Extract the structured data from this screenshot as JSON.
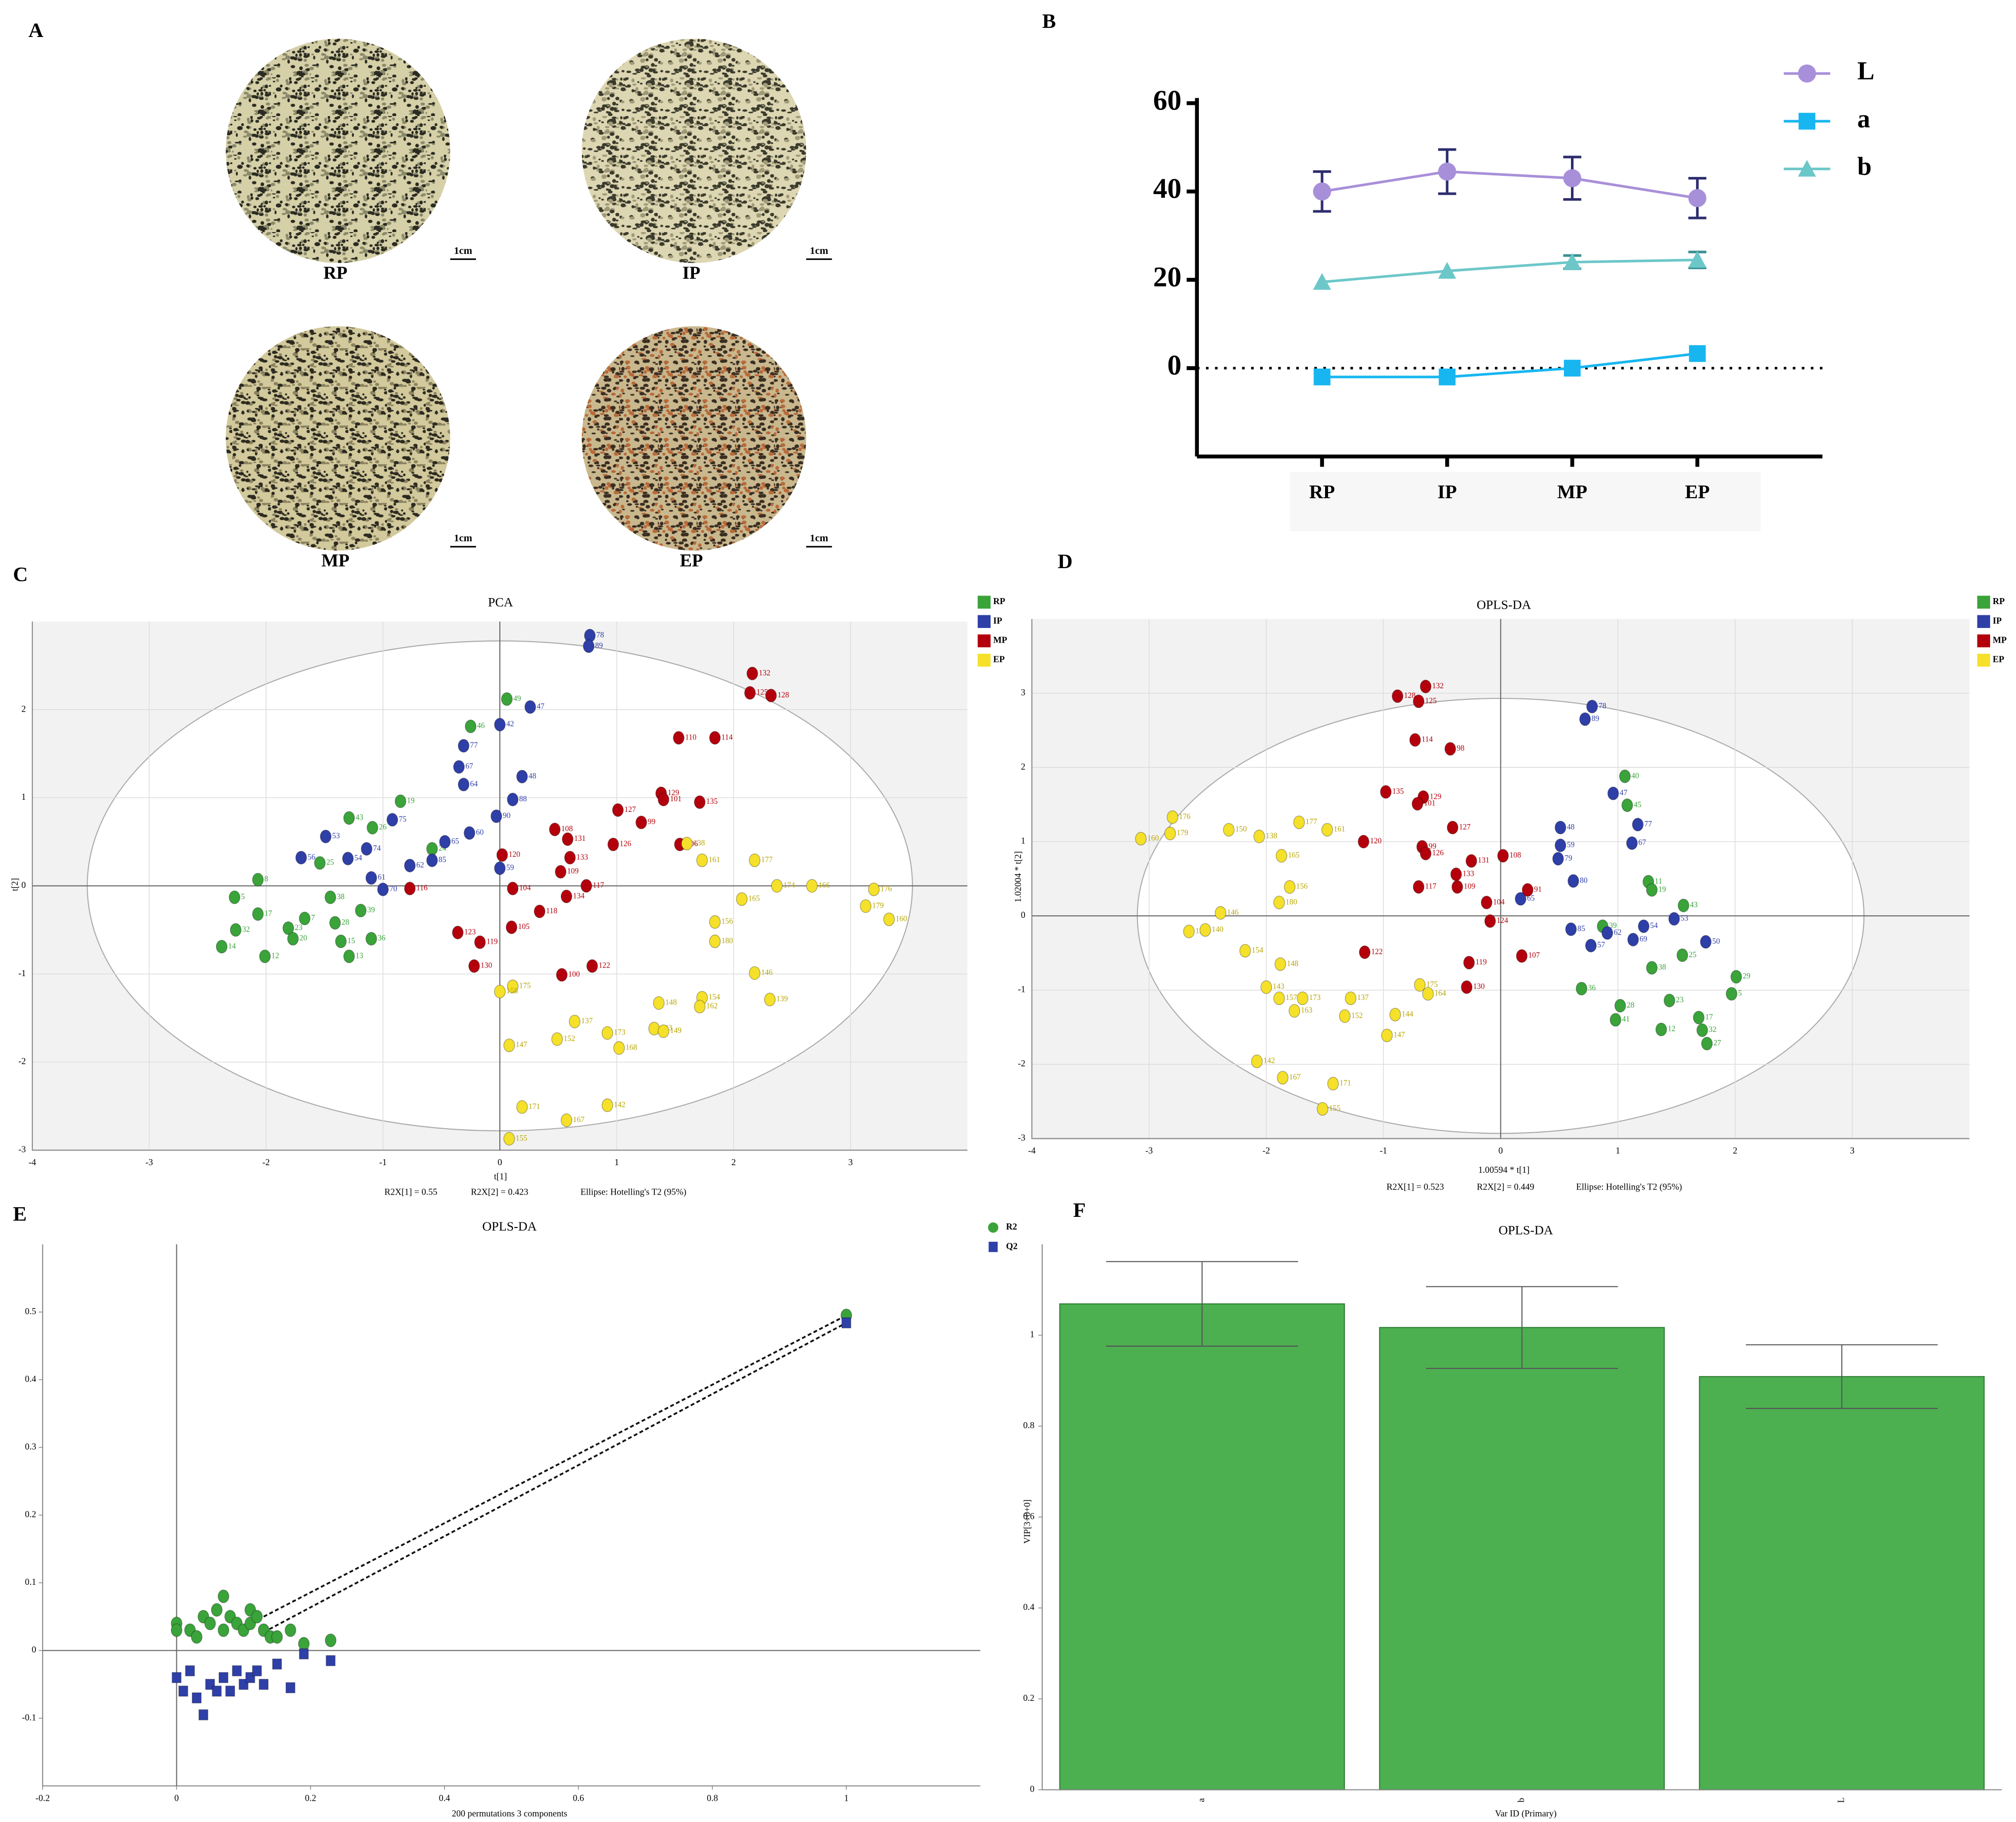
{
  "panel_labels": [
    "A",
    "B",
    "C",
    "D",
    "E",
    "F"
  ],
  "photos": [
    {
      "label": "RP",
      "scale": "1cm"
    },
    {
      "label": "IP",
      "scale": "1cm"
    },
    {
      "label": "MP",
      "scale": "1cm"
    },
    {
      "label": "EP",
      "scale": "1cm"
    }
  ],
  "chart_data": [
    {
      "type": "line",
      "categories": [
        "RP",
        "IP",
        "MP",
        "EP"
      ],
      "ylim": [
        -20,
        60
      ],
      "yticks": [
        0,
        20,
        40,
        60
      ],
      "reference_line": 0,
      "legend": "upper right",
      "series": [
        {
          "name": "L",
          "color": "#a88fd9",
          "error_color": "#2d2d6e",
          "marker": "circle",
          "values": [
            40,
            44.5,
            43,
            38.5
          ],
          "errors": [
            4.5,
            5,
            4.8,
            4.5
          ]
        },
        {
          "name": "a",
          "color": "#17b6f0",
          "marker": "square",
          "values": [
            -2,
            -2,
            0,
            3.3
          ],
          "errors": [
            null,
            null,
            null,
            null
          ]
        },
        {
          "name": "b",
          "color": "#6cc7c9",
          "error_color": "#3a8f91",
          "marker": "triangle",
          "values": [
            19.5,
            22,
            24,
            24.5
          ],
          "errors": [
            null,
            null,
            1.5,
            1.8
          ]
        }
      ]
    },
    {
      "type": "scatter",
      "title": "PCA",
      "x_label": "t[1]",
      "y_label": "t[2]",
      "xlim": [
        -4,
        4
      ],
      "ylim": [
        -3,
        3
      ],
      "xticks": [
        -4,
        -3,
        -2,
        -1,
        0,
        1,
        2,
        3
      ],
      "yticks": [
        -3,
        -2,
        -1,
        0,
        1,
        2
      ],
      "grid": true,
      "zero_lines": true,
      "ellipse": [
        3.53,
        2.78
      ],
      "legend": "outside upper right",
      "notes": [
        "R2X[1] = 0.55",
        "R2X[2] = 0.423",
        "Ellipse: Hotelling's T2 (95%)"
      ],
      "series": [
        {
          "name": "RP",
          "color": "#3aa33a",
          "x": [
            -2.27,
            -2.07,
            -2.07,
            -2.01,
            -2.26,
            -2.38,
            -1.81,
            -1.77,
            -1.67,
            -1.45,
            -1.41,
            -1.36,
            -1.29,
            -1.1,
            -1.19,
            -1.29,
            -1.09,
            -0.85,
            -0.25,
            0.06,
            -1.54,
            -0.58
          ],
          "values": [
            -0.13,
            0.07,
            -0.32,
            -0.8,
            -0.5,
            -0.69,
            -0.48,
            -0.6,
            -0.37,
            -0.13,
            -0.42,
            -0.63,
            -0.8,
            -0.6,
            -0.28,
            0.77,
            0.66,
            0.96,
            1.81,
            2.12,
            0.26,
            0.42
          ],
          "point_labels": [
            5,
            8,
            17,
            12,
            32,
            14,
            23,
            20,
            7,
            38,
            28,
            15,
            13,
            36,
            39,
            43,
            26,
            19,
            46,
            49,
            25,
            24
          ]
        },
        {
          "name": "IP",
          "color": "#2f3fa8",
          "x": [
            0.77,
            0.76,
            0.26,
            0.0,
            -0.31,
            -0.35,
            -0.31,
            0.19,
            0.11,
            -0.92,
            -1.49,
            -1.7,
            -1.14,
            -0.47,
            -0.26,
            -1.1,
            -1.0,
            -0.77,
            -0.58,
            0.0,
            -1.3,
            -0.03
          ],
          "values": [
            2.84,
            2.72,
            2.03,
            1.83,
            1.59,
            1.35,
            1.15,
            1.24,
            0.98,
            0.75,
            0.56,
            0.32,
            0.42,
            0.5,
            0.6,
            0.09,
            -0.04,
            0.23,
            0.29,
            0.2,
            0.31,
            0.79
          ],
          "point_labels": [
            78,
            89,
            47,
            42,
            77,
            67,
            64,
            48,
            88,
            75,
            53,
            56,
            74,
            65,
            60,
            61,
            70,
            62,
            85,
            59,
            54,
            90
          ]
        },
        {
          "name": "MP",
          "color": "#b3000c",
          "x": [
            2.16,
            2.14,
            2.32,
            1.53,
            1.84,
            1.38,
            1.4,
            1.71,
            1.01,
            1.21,
            0.47,
            0.58,
            0.6,
            0.97,
            1.54,
            0.02,
            0.52,
            0.11,
            0.74,
            0.57,
            0.34,
            0.1,
            -0.77,
            -0.17,
            -0.22,
            0.79,
            0.53,
            -0.36
          ],
          "values": [
            2.41,
            2.19,
            2.16,
            1.68,
            1.68,
            1.05,
            0.98,
            0.95,
            0.86,
            0.72,
            0.64,
            0.53,
            0.32,
            0.47,
            0.47,
            0.35,
            0.16,
            -0.03,
            0.0,
            -0.12,
            -0.29,
            -0.47,
            -0.03,
            -0.64,
            -0.91,
            -0.91,
            -1.01,
            -0.53
          ],
          "point_labels": [
            132,
            125,
            128,
            110,
            114,
            129,
            101,
            135,
            127,
            99,
            108,
            131,
            133,
            126,
            106,
            120,
            109,
            104,
            117,
            134,
            118,
            105,
            116,
            119,
            130,
            122,
            100,
            123
          ]
        },
        {
          "name": "EP",
          "color": "#f5e02a",
          "x": [
            3.2,
            3.13,
            3.33,
            2.67,
            2.37,
            2.18,
            2.07,
            1.73,
            1.6,
            1.84,
            1.84,
            2.18,
            2.31,
            1.73,
            1.71,
            1.36,
            1.32,
            1.4,
            0.92,
            1.02,
            0.64,
            0.49,
            0.08,
            0.11,
            0.0,
            0.19,
            0.92,
            0.57,
            0.08
          ],
          "values": [
            -0.04,
            -0.23,
            -0.38,
            0.0,
            0.0,
            0.29,
            -0.15,
            0.29,
            0.48,
            -0.41,
            -0.63,
            -0.99,
            -1.29,
            -1.27,
            -1.37,
            -1.33,
            -1.62,
            -1.65,
            -1.67,
            -1.84,
            -1.54,
            -1.74,
            -1.81,
            -1.14,
            -1.2,
            -2.51,
            -2.49,
            -2.66,
            -2.87
          ],
          "point_labels": [
            176,
            179,
            160,
            166,
            174,
            177,
            165,
            161,
            138,
            156,
            180,
            146,
            139,
            154,
            162,
            148,
            143,
            149,
            173,
            168,
            137,
            152,
            147,
            175,
            158,
            171,
            142,
            167,
            155
          ]
        }
      ]
    },
    {
      "type": "scatter",
      "title": "OPLS-DA",
      "x_label": "1.00594 * t[1]",
      "y_label": "1.02004 * t[2]",
      "xlim": [
        -4,
        4
      ],
      "ylim": [
        -3,
        4
      ],
      "xticks": [
        -4,
        -3,
        -2,
        -1,
        0,
        1,
        2,
        3
      ],
      "yticks": [
        -3,
        -2,
        -1,
        0,
        1,
        2,
        3
      ],
      "grid": true,
      "zero_lines": true,
      "ellipse": [
        3.1,
        2.93
      ],
      "legend": "outside upper right",
      "notes": [
        "R2X[1] = 0.523",
        "R2X[2] = 0.449",
        "Ellipse: Hotelling's T2 (95%)"
      ],
      "series": [
        {
          "name": "RP",
          "color": "#3aa33a",
          "x": [
            1.06,
            1.08,
            1.26,
            1.29,
            1.56,
            1.29,
            2.01,
            1.97,
            1.44,
            1.37,
            1.69,
            1.72,
            1.76,
            0.69,
            0.98,
            1.55,
            1.02,
            0.87
          ],
          "values": [
            1.88,
            1.49,
            0.46,
            0.35,
            0.14,
            -0.7,
            -0.82,
            -1.05,
            -1.14,
            -1.53,
            -1.37,
            -1.54,
            -1.72,
            -0.98,
            -1.4,
            -0.53,
            -1.21,
            -0.14
          ],
          "point_labels": [
            40,
            45,
            11,
            19,
            43,
            38,
            29,
            5,
            23,
            12,
            17,
            32,
            27,
            36,
            41,
            25,
            28,
            39
          ]
        },
        {
          "name": "IP",
          "color": "#2f3fa8",
          "x": [
            0.78,
            0.72,
            1.17,
            1.12,
            0.51,
            0.51,
            0.49,
            0.62,
            1.75,
            1.48,
            1.22,
            1.13,
            0.77,
            0.91,
            0.6,
            0.96,
            0.17
          ],
          "values": [
            2.82,
            2.65,
            1.23,
            0.98,
            1.19,
            0.95,
            0.77,
            0.47,
            -0.35,
            -0.04,
            -0.14,
            -0.32,
            -0.4,
            -0.23,
            -0.18,
            1.65,
            0.23
          ],
          "point_labels": [
            78,
            89,
            77,
            67,
            48,
            59,
            79,
            80,
            50,
            53,
            54,
            69,
            57,
            62,
            85,
            47,
            65
          ]
        },
        {
          "name": "MP",
          "color": "#b3000c",
          "x": [
            -0.64,
            -0.7,
            -0.88,
            -0.73,
            -0.43,
            -0.98,
            -0.66,
            -0.71,
            -0.41,
            -0.67,
            -0.64,
            -0.25,
            0.02,
            -0.38,
            -0.7,
            -0.37,
            -0.12,
            0.23,
            -1.17,
            -1.16,
            -0.29,
            -0.27,
            0.18,
            -0.09
          ],
          "values": [
            3.09,
            2.89,
            2.96,
            2.37,
            2.25,
            1.67,
            1.6,
            1.51,
            1.19,
            0.93,
            0.84,
            0.74,
            0.81,
            0.56,
            0.39,
            0.39,
            0.18,
            0.35,
            1.0,
            -0.49,
            -0.96,
            -0.63,
            -0.54,
            -0.07
          ],
          "point_labels": [
            132,
            125,
            128,
            114,
            98,
            135,
            129,
            101,
            127,
            99,
            126,
            131,
            108,
            133,
            117,
            109,
            104,
            91,
            120,
            122,
            130,
            119,
            107,
            124
          ]
        },
        {
          "name": "EP",
          "color": "#f5e02a",
          "x": [
            -2.8,
            -2.82,
            -3.07,
            -2.32,
            -2.06,
            -1.72,
            -1.48,
            -1.87,
            -1.8,
            -1.89,
            -2.66,
            -2.52,
            -2.39,
            -2.18,
            -1.88,
            -2.0,
            -1.89,
            -1.69,
            -1.76,
            -1.28,
            -1.33,
            -0.9,
            -0.97,
            -0.69,
            -0.62,
            -2.08,
            -1.86,
            -1.43,
            -1.52
          ],
          "values": [
            1.33,
            1.11,
            1.04,
            1.16,
            1.07,
            1.26,
            1.16,
            0.81,
            0.39,
            0.18,
            -0.21,
            -0.19,
            0.04,
            -0.47,
            -0.65,
            -0.96,
            -1.11,
            -1.11,
            -1.28,
            -1.11,
            -1.35,
            -1.33,
            -1.61,
            -0.93,
            -1.05,
            -1.96,
            -2.18,
            -2.26,
            -2.6
          ],
          "point_labels": [
            176,
            179,
            160,
            150,
            138,
            177,
            161,
            165,
            156,
            180,
            139,
            140,
            146,
            154,
            148,
            143,
            157,
            173,
            163,
            137,
            152,
            144,
            147,
            175,
            164,
            142,
            167,
            171,
            155
          ]
        }
      ]
    },
    {
      "type": "scatter",
      "title": "OPLS-DA",
      "x_label": "200 permutations 3 components",
      "xlim": [
        -0.2,
        1.2
      ],
      "ylim": [
        -0.2,
        0.6
      ],
      "xticks": [
        -0.2,
        0,
        0.2,
        0.4,
        0.6,
        0.8,
        1
      ],
      "yticks": [
        -0.1,
        0,
        0.1,
        0.2,
        0.3,
        0.4,
        0.5
      ],
      "grid": false,
      "zero_lines": true,
      "legend": "outside upper right",
      "series": [
        {
          "name": "R2",
          "color": "#3aa33a",
          "marker": "circle",
          "x": [
            0,
            0,
            0.02,
            0.03,
            0.04,
            0.05,
            0.06,
            0.07,
            0.07,
            0.08,
            0.09,
            0.1,
            0.11,
            0.11,
            0.12,
            0.13,
            0.14,
            0.15,
            0.17,
            0.19,
            0.23,
            1
          ],
          "values": [
            0.04,
            0.03,
            0.03,
            0.02,
            0.05,
            0.04,
            0.06,
            0.08,
            0.03,
            0.05,
            0.04,
            0.03,
            0.06,
            0.04,
            0.05,
            0.03,
            0.02,
            0.02,
            0.03,
            0.01,
            0.015,
            0.495
          ]
        },
        {
          "name": "Q2",
          "color": "#2f3fa8",
          "marker": "square",
          "x": [
            0,
            0.01,
            0.02,
            0.03,
            0.04,
            0.05,
            0.06,
            0.07,
            0.08,
            0.09,
            0.1,
            0.11,
            0.12,
            0.13,
            0.15,
            0.17,
            0.19,
            0.23,
            1
          ],
          "values": [
            -0.04,
            -0.06,
            -0.03,
            -0.07,
            -0.095,
            -0.05,
            -0.06,
            -0.04,
            -0.06,
            -0.03,
            -0.05,
            -0.04,
            -0.03,
            -0.05,
            -0.02,
            -0.055,
            -0.005,
            -0.015,
            0.484
          ]
        }
      ],
      "lines": [
        {
          "x": [
            0.13,
            1
          ],
          "values": [
            0.05,
            0.495
          ]
        },
        {
          "x": [
            0.13,
            1
          ],
          "values": [
            0.027,
            0.484
          ]
        }
      ]
    },
    {
      "type": "bar",
      "title": "OPLS-DA",
      "x_label": "Var ID (Primary)",
      "y_label": "VIP[3+0+0]",
      "categories": [
        "a",
        "b",
        "L"
      ],
      "values": [
        1.069,
        1.017,
        0.909
      ],
      "errors": [
        0.093,
        0.09,
        0.07
      ],
      "color": "#4caf50",
      "ylim": [
        0,
        1.2
      ],
      "yticks": [
        0,
        0.2,
        0.4,
        0.6,
        0.8,
        1
      ]
    }
  ]
}
